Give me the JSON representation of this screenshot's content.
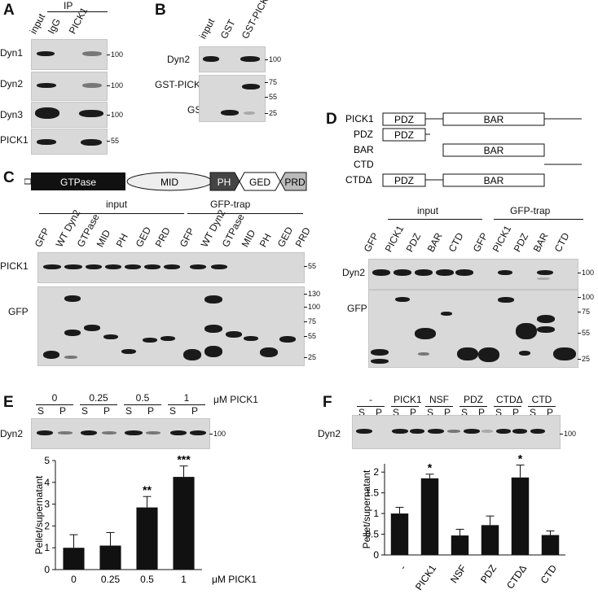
{
  "panels": {
    "A": {
      "letter": "A",
      "ip_header": "IP",
      "lanes": [
        "input",
        "IgG",
        "PICK1"
      ],
      "rows": [
        {
          "label": "Dyn1",
          "mw": "100"
        },
        {
          "label": "Dyn2",
          "mw": "100"
        },
        {
          "label": "Dyn3",
          "mw": "100"
        },
        {
          "label": "PICK1",
          "mw": "55"
        }
      ]
    },
    "B": {
      "letter": "B",
      "lanes": [
        "input",
        "GST",
        "GST-PICK1"
      ],
      "rows": [
        {
          "label": "Dyn2",
          "mw": "100"
        },
        {
          "label": "GST-PICK1"
        },
        {
          "label": "GST"
        }
      ],
      "lower_markers": [
        "75",
        "55",
        "25"
      ]
    },
    "C": {
      "letter": "C",
      "domains": [
        "GTPase",
        "MID",
        "PH",
        "GED",
        "PRD"
      ],
      "group_labels": [
        "input",
        "GFP-trap"
      ],
      "lanes": [
        "GFP",
        "WT Dyn2",
        "GTPase",
        "MID",
        "PH",
        "GED",
        "PRD",
        "GFP",
        "WT Dyn2",
        "GTPase",
        "MID",
        "PH",
        "GED",
        "PRD"
      ],
      "rows": [
        {
          "label": "PICK1",
          "mw": "55"
        },
        {
          "label": "GFP"
        }
      ],
      "gfp_markers": [
        "130",
        "100",
        "75",
        "55",
        "25"
      ]
    },
    "D": {
      "letter": "D",
      "constructs": [
        {
          "name": "PICK1",
          "pdz": "PDZ",
          "bar": "BAR"
        },
        {
          "name": "PDZ",
          "pdz": "PDZ"
        },
        {
          "name": "BAR",
          "bar": "BAR"
        },
        {
          "name": "CTD"
        },
        {
          "name": "CTDΔ",
          "pdz": "PDZ",
          "bar": "BAR"
        }
      ],
      "group_labels": [
        "input",
        "GFP-trap"
      ],
      "lanes": [
        "GFP",
        "PICK1",
        "PDZ",
        "BAR",
        "CTD",
        "GFP",
        "PICK1",
        "PDZ",
        "BAR",
        "CTD"
      ],
      "rows": [
        {
          "label": "Dyn2",
          "mw": "100"
        },
        {
          "label": "GFP"
        }
      ],
      "gfp_markers": [
        "100",
        "75",
        "55",
        "25"
      ]
    },
    "E": {
      "letter": "E",
      "unit_label": "μM PICK1",
      "group_labels": [
        "0",
        "0.25",
        "0.5",
        "1"
      ],
      "sp": [
        "S",
        "P"
      ],
      "blot_label": "Dyn2",
      "mw": "100"
    },
    "F": {
      "letter": "F",
      "group_labels": [
        "-",
        "PICK1",
        "NSF",
        "PDZ",
        "CTDΔ",
        "CTD"
      ],
      "sp": [
        "S",
        "P"
      ],
      "blot_label": "Dyn2",
      "mw": "100"
    }
  },
  "chart_data": [
    {
      "type": "bar",
      "panel": "E",
      "categories": [
        "0",
        "0.25",
        "0.5",
        "1"
      ],
      "values": [
        1.0,
        1.1,
        2.85,
        4.25
      ],
      "errors": [
        0.6,
        0.6,
        0.5,
        0.5
      ],
      "significance": [
        "",
        "",
        "**",
        "***"
      ],
      "ylabel": "Pellet/supernatant",
      "xlabel": "μM PICK1",
      "ylim": [
        0,
        5
      ],
      "yticks": [
        "0",
        "1",
        "2",
        "3",
        "4",
        "5"
      ]
    },
    {
      "type": "bar",
      "panel": "F",
      "categories": [
        "-",
        "PICK1",
        "NSF",
        "PDZ",
        "CTDΔ",
        "CTD"
      ],
      "values": [
        1.0,
        1.85,
        0.47,
        0.72,
        1.87,
        0.48
      ],
      "errors": [
        0.15,
        0.1,
        0.15,
        0.22,
        0.3,
        0.1
      ],
      "significance": [
        "",
        "*",
        "",
        "",
        "*",
        ""
      ],
      "ylabel": "Pellet/supernatant",
      "ylim": [
        0,
        2.2
      ],
      "yticks": [
        "0",
        "0.5",
        "1",
        "1.5",
        "2"
      ]
    }
  ]
}
